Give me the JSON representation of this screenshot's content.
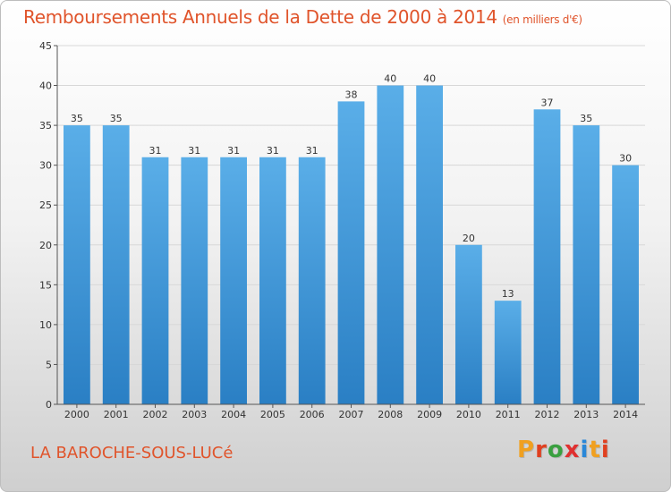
{
  "header": {
    "title": "Remboursements Annuels de la Dette de 2000 à 2014",
    "subtitle": "(en milliers d'€)"
  },
  "footer": {
    "commune": "LA BAROCHE-SOUS-LUCé",
    "logo_text": "Proxiti"
  },
  "colors": {
    "title": "#e0542b",
    "bar_top": "#5aaee8",
    "bar_bottom": "#2a7fc4",
    "logo_letters": [
      "#f0a020",
      "#e04020",
      "#3aa040",
      "#e03030",
      "#2a88d8",
      "#f0a020",
      "#e04020"
    ]
  },
  "chart_data": {
    "type": "bar",
    "title": "Remboursements Annuels de la Dette de 2000 à 2014",
    "categories": [
      "2000",
      "2001",
      "2002",
      "2003",
      "2004",
      "2005",
      "2006",
      "2007",
      "2008",
      "2009",
      "2010",
      "2011",
      "2012",
      "2013",
      "2014"
    ],
    "values": [
      35,
      35,
      31,
      31,
      31,
      31,
      31,
      38,
      40,
      40,
      20,
      13,
      37,
      35,
      30
    ],
    "ylim": [
      0,
      45
    ],
    "yticks": [
      0,
      5,
      10,
      15,
      20,
      25,
      30,
      35,
      40,
      45
    ],
    "grid": true,
    "data_labels": true
  }
}
